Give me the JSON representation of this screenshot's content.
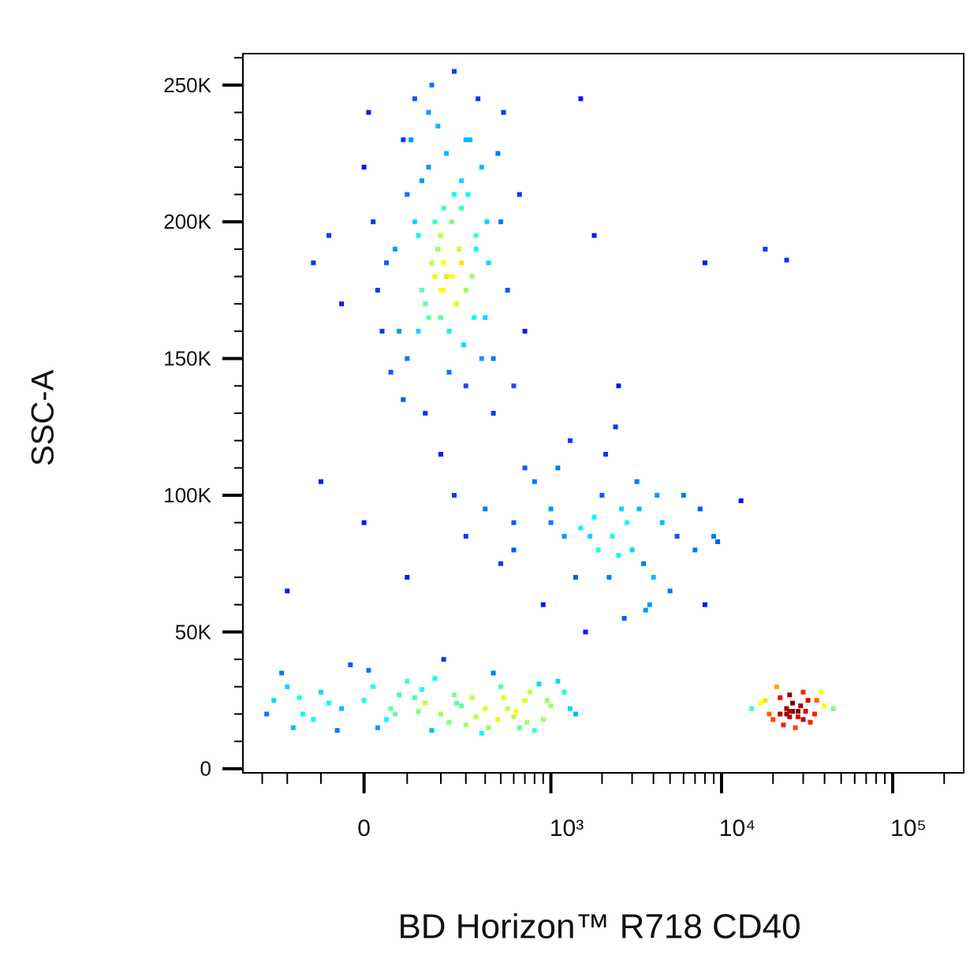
{
  "chart_data": {
    "type": "scatter",
    "x_label": "BD Horizon™ R718 CD40",
    "y_label": "SSC-A",
    "xscale": "biexponential",
    "colormap": "jet",
    "xlim": [
      -400,
      260000
    ],
    "ylim": [
      -1500,
      261500
    ],
    "xticks": [
      0,
      {
        "value": 1000,
        "label": "10³"
      },
      {
        "value": 10000,
        "label": "10⁴"
      },
      {
        "value": 100000,
        "label": "10⁵"
      }
    ],
    "xminorticks": [
      -300,
      -200,
      -100,
      100,
      200,
      300,
      400,
      500,
      600,
      700,
      800,
      900,
      2000,
      3000,
      4000,
      5000,
      6000,
      7000,
      8000,
      9000,
      20000,
      30000,
      40000,
      50000,
      60000,
      70000,
      80000,
      90000,
      200000
    ],
    "yticks": [
      0,
      {
        "value": 50000,
        "label": "50K"
      },
      {
        "value": 100000,
        "label": "100K"
      },
      {
        "value": 150000,
        "label": "150K"
      },
      {
        "value": 200000,
        "label": "200K"
      },
      {
        "value": 250000,
        "label": "250K"
      }
    ],
    "yminorticks": [
      10000,
      20000,
      30000,
      40000,
      60000,
      70000,
      80000,
      90000,
      110000,
      120000,
      130000,
      140000,
      160000,
      170000,
      180000,
      190000,
      210000,
      220000,
      230000,
      240000,
      260000
    ],
    "series": [
      {
        "x": [
          50,
          120,
          200,
          300,
          150,
          250,
          80,
          180,
          350,
          400,
          220,
          100,
          160,
          280,
          30,
          60,
          140,
          210,
          320,
          450,
          500,
          190,
          260,
          90,
          170,
          230,
          310,
          380,
          130,
          240,
          20,
          70,
          110,
          200,
          290,
          360,
          420,
          550,
          600,
          160,
          210,
          270,
          330,
          -50,
          0,
          150,
          230,
          190,
          250,
          280,
          120,
          340,
          410,
          480,
          -80,
          40,
          180,
          300,
          220,
          170,
          260,
          140,
          100,
          200,
          350,
          450,
          650,
          700,
          -120,
          10,
          90,
          190,
          240,
          300,
          380,
          160,
          210,
          130,
          280,
          520
        ],
        "y": [
          185000,
          200000,
          195000,
          175000,
          170000,
          210000,
          160000,
          180000,
          190000,
          165000,
          225000,
          150000,
          240000,
          205000,
          175000,
          145000,
          215000,
          185000,
          230000,
          150000,
          200000,
          190000,
          170000,
          135000,
          250000,
          160000,
          210000,
          220000,
          195000,
          180000,
          200000,
          190000,
          230000,
          175000,
          155000,
          245000,
          185000,
          175000,
          140000,
          165000,
          205000,
          190000,
          180000,
          170000,
          220000,
          130000,
          145000,
          235000,
          255000,
          215000,
          245000,
          165000,
          200000,
          225000,
          195000,
          160000,
          200000,
          140000,
          180000,
          185000,
          170000,
          175000,
          210000,
          165000,
          195000,
          130000,
          210000,
          160000,
          185000,
          240000,
          230000,
          190000,
          200000,
          230000,
          150000,
          220000,
          175000,
          160000,
          185000,
          240000
        ]
      },
      {
        "x": [
          -250,
          -200,
          -150,
          -100,
          -50,
          0,
          50,
          100,
          150,
          200,
          250,
          300,
          400,
          500,
          600,
          700,
          800,
          1000,
          1200,
          1400,
          -220,
          -120,
          -30,
          30,
          80,
          130,
          180,
          230,
          330,
          450,
          550,
          650,
          750,
          900,
          1100,
          -180,
          -80,
          20,
          60,
          120,
          170,
          210,
          280,
          350,
          420,
          520,
          620,
          720,
          850,
          950,
          -280,
          -160,
          -60,
          10,
          70,
          140,
          260,
          380,
          480,
          1300
        ],
        "y": [
          25000,
          30000,
          20000,
          28000,
          22000,
          25000,
          18000,
          32000,
          24000,
          20000,
          27000,
          16000,
          22000,
          30000,
          19000,
          25000,
          14000,
          23000,
          28000,
          20000,
          35000,
          18000,
          38000,
          15000,
          27000,
          21000,
          33000,
          17000,
          26000,
          35000,
          22000,
          15000,
          28000,
          18000,
          32000,
          15000,
          24000,
          30000,
          22000,
          26000,
          14000,
          40000,
          23000,
          19000,
          15000,
          26000,
          21000,
          17000,
          31000,
          25000,
          20000,
          26000,
          14000,
          36000,
          20000,
          29000,
          24000,
          13000,
          18000,
          22000
        ]
      },
      {
        "x": [
          400,
          600,
          800,
          1000,
          1200,
          1500,
          1800,
          2000,
          2300,
          2600,
          3000,
          3500,
          4000,
          4500,
          5000,
          6000,
          7000,
          8000,
          1100,
          1400,
          1700,
          2100,
          2500,
          2800,
          3200,
          3800,
          900,
          700,
          500,
          -100,
          0,
          100,
          200,
          300,
          1600,
          1900,
          2200,
          2700,
          3300,
          4200,
          5500,
          1300,
          1000,
          2400,
          3600,
          600,
          250,
          -200,
          9000,
          7500
        ],
        "y": [
          95000,
          80000,
          105000,
          90000,
          85000,
          88000,
          92000,
          100000,
          85000,
          95000,
          80000,
          75000,
          70000,
          90000,
          65000,
          100000,
          80000,
          60000,
          110000,
          70000,
          85000,
          115000,
          78000,
          90000,
          105000,
          60000,
          60000,
          110000,
          75000,
          105000,
          90000,
          70000,
          115000,
          85000,
          50000,
          80000,
          70000,
          55000,
          95000,
          100000,
          85000,
          120000,
          95000,
          125000,
          58000,
          90000,
          100000,
          65000,
          85000,
          95000
        ]
      },
      {
        "x": [
          15000,
          18000,
          20000,
          22000,
          24000,
          25000,
          26000,
          28000,
          30000,
          32000,
          35000,
          38000,
          40000,
          45000,
          21000,
          23000,
          25000,
          27000,
          29000,
          31000,
          19000,
          24000,
          26000,
          28000,
          33000,
          17000,
          22000,
          30000,
          36000,
          25000
        ],
        "y": [
          22000,
          25000,
          18000,
          20000,
          22000,
          19000,
          24000,
          21000,
          18000,
          25000,
          20000,
          28000,
          23000,
          22000,
          30000,
          16000,
          27000,
          15000,
          23000,
          21000,
          20000,
          20000,
          21000,
          19000,
          17000,
          24000,
          26000,
          28000,
          25000,
          21000
        ]
      },
      {
        "x": [
          18000,
          24000,
          8000,
          2500,
          1800,
          1500,
          13000,
          9500
        ],
        "y": [
          190000,
          186000,
          185000,
          140000,
          195000,
          245000,
          98000,
          83000
        ]
      }
    ]
  }
}
